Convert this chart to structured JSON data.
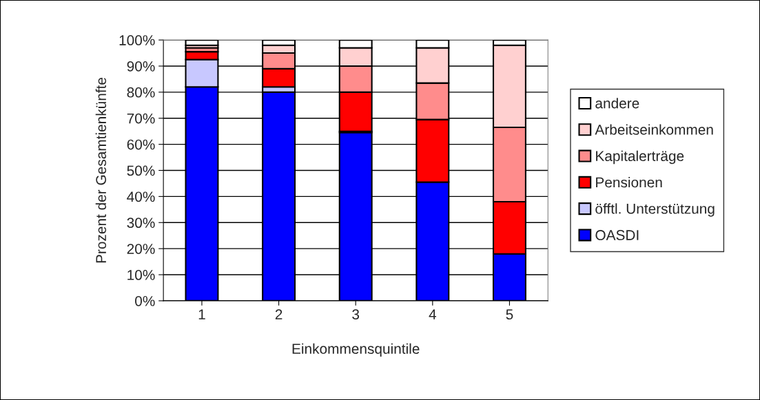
{
  "chart_data": {
    "type": "bar",
    "stacked": true,
    "xlabel": "Einkommensquintile",
    "ylabel": "Prozent der Gesamtienkünfte",
    "categories": [
      "1",
      "2",
      "3",
      "4",
      "5"
    ],
    "series": [
      {
        "name": "OASDI",
        "color": "#0000ff",
        "values": [
          82,
          80,
          64.5,
          45.5,
          18
        ]
      },
      {
        "name": "öfftl. Unterstützung",
        "color": "#c8c8ff",
        "values": [
          10.5,
          2,
          0.5,
          0,
          0
        ]
      },
      {
        "name": "Pensionen",
        "color": "#ff0000",
        "values": [
          3,
          7,
          15,
          24,
          20
        ]
      },
      {
        "name": "Kapitalerträge",
        "color": "#ff8c8c",
        "values": [
          1.5,
          6,
          10,
          14,
          28.5
        ]
      },
      {
        "name": "Arbeitseinkommen",
        "color": "#ffd0d0",
        "values": [
          1,
          3,
          7,
          13.5,
          31.5
        ]
      },
      {
        "name": "andere",
        "color": "#ffffff",
        "values": [
          2,
          2,
          3,
          3,
          2
        ]
      }
    ],
    "ylim": [
      0,
      100
    ],
    "yticks": [
      {
        "value": 0,
        "label": "0%"
      },
      {
        "value": 10,
        "label": "10%"
      },
      {
        "value": 20,
        "label": "20%"
      },
      {
        "value": 30,
        "label": "30%"
      },
      {
        "value": 40,
        "label": "40%"
      },
      {
        "value": 50,
        "label": "50%"
      },
      {
        "value": 60,
        "label": "60%"
      },
      {
        "value": 70,
        "label": "70%"
      },
      {
        "value": 80,
        "label": "80%"
      },
      {
        "value": 90,
        "label": "90%"
      },
      {
        "value": 100,
        "label": "100%"
      }
    ],
    "grid": "y",
    "legend": "right"
  }
}
